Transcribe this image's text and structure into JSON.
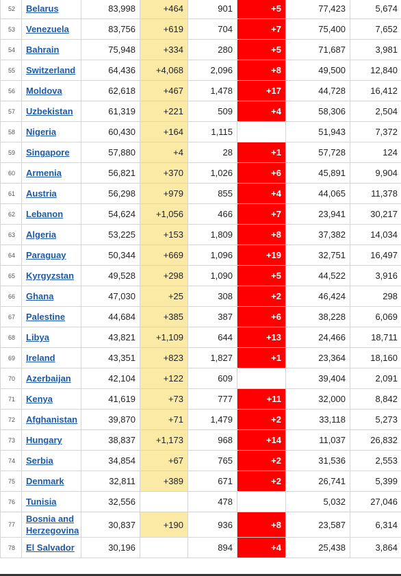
{
  "rows": [
    {
      "rank": "52",
      "country": "Belarus",
      "total_cases": "83,998",
      "new_cases": "+464",
      "total_deaths": "901",
      "new_deaths": "+5",
      "total_recovered": "77,423",
      "active_cases": "5,674"
    },
    {
      "rank": "53",
      "country": "Venezuela",
      "total_cases": "83,756",
      "new_cases": "+619",
      "total_deaths": "704",
      "new_deaths": "+7",
      "total_recovered": "75,400",
      "active_cases": "7,652"
    },
    {
      "rank": "54",
      "country": "Bahrain",
      "total_cases": "75,948",
      "new_cases": "+334",
      "total_deaths": "280",
      "new_deaths": "+5",
      "total_recovered": "71,687",
      "active_cases": "3,981"
    },
    {
      "rank": "55",
      "country": "Switzerland",
      "total_cases": "64,436",
      "new_cases": "+4,068",
      "total_deaths": "2,096",
      "new_deaths": "+8",
      "total_recovered": "49,500",
      "active_cases": "12,840"
    },
    {
      "rank": "56",
      "country": "Moldova",
      "total_cases": "62,618",
      "new_cases": "+467",
      "total_deaths": "1,478",
      "new_deaths": "+17",
      "total_recovered": "44,728",
      "active_cases": "16,412"
    },
    {
      "rank": "57",
      "country": "Uzbekistan",
      "total_cases": "61,319",
      "new_cases": "+221",
      "total_deaths": "509",
      "new_deaths": "+4",
      "total_recovered": "58,306",
      "active_cases": "2,504"
    },
    {
      "rank": "58",
      "country": "Nigeria",
      "total_cases": "60,430",
      "new_cases": "+164",
      "total_deaths": "1,115",
      "new_deaths": "",
      "total_recovered": "51,943",
      "active_cases": "7,372"
    },
    {
      "rank": "59",
      "country": "Singapore",
      "total_cases": "57,880",
      "new_cases": "+4",
      "total_deaths": "28",
      "new_deaths": "+1",
      "total_recovered": "57,728",
      "active_cases": "124"
    },
    {
      "rank": "60",
      "country": "Armenia",
      "total_cases": "56,821",
      "new_cases": "+370",
      "total_deaths": "1,026",
      "new_deaths": "+6",
      "total_recovered": "45,891",
      "active_cases": "9,904"
    },
    {
      "rank": "61",
      "country": "Austria",
      "total_cases": "56,298",
      "new_cases": "+979",
      "total_deaths": "855",
      "new_deaths": "+4",
      "total_recovered": "44,065",
      "active_cases": "11,378"
    },
    {
      "rank": "62",
      "country": "Lebanon",
      "total_cases": "54,624",
      "new_cases": "+1,056",
      "total_deaths": "466",
      "new_deaths": "+7",
      "total_recovered": "23,941",
      "active_cases": "30,217"
    },
    {
      "rank": "63",
      "country": "Algeria",
      "total_cases": "53,225",
      "new_cases": "+153",
      "total_deaths": "1,809",
      "new_deaths": "+8",
      "total_recovered": "37,382",
      "active_cases": "14,034"
    },
    {
      "rank": "64",
      "country": "Paraguay",
      "total_cases": "50,344",
      "new_cases": "+669",
      "total_deaths": "1,096",
      "new_deaths": "+19",
      "total_recovered": "32,751",
      "active_cases": "16,497"
    },
    {
      "rank": "65",
      "country": "Kyrgyzstan",
      "total_cases": "49,528",
      "new_cases": "+298",
      "total_deaths": "1,090",
      "new_deaths": "+5",
      "total_recovered": "44,522",
      "active_cases": "3,916"
    },
    {
      "rank": "66",
      "country": "Ghana",
      "total_cases": "47,030",
      "new_cases": "+25",
      "total_deaths": "308",
      "new_deaths": "+2",
      "total_recovered": "46,424",
      "active_cases": "298"
    },
    {
      "rank": "67",
      "country": "Palestine",
      "total_cases": "44,684",
      "new_cases": "+385",
      "total_deaths": "387",
      "new_deaths": "+6",
      "total_recovered": "38,228",
      "active_cases": "6,069"
    },
    {
      "rank": "68",
      "country": "Libya",
      "total_cases": "43,821",
      "new_cases": "+1,109",
      "total_deaths": "644",
      "new_deaths": "+13",
      "total_recovered": "24,466",
      "active_cases": "18,711"
    },
    {
      "rank": "69",
      "country": "Ireland",
      "total_cases": "43,351",
      "new_cases": "+823",
      "total_deaths": "1,827",
      "new_deaths": "+1",
      "total_recovered": "23,364",
      "active_cases": "18,160"
    },
    {
      "rank": "70",
      "country": "Azerbaijan",
      "total_cases": "42,104",
      "new_cases": "+122",
      "total_deaths": "609",
      "new_deaths": "",
      "total_recovered": "39,404",
      "active_cases": "2,091"
    },
    {
      "rank": "71",
      "country": "Kenya",
      "total_cases": "41,619",
      "new_cases": "+73",
      "total_deaths": "777",
      "new_deaths": "+11",
      "total_recovered": "32,000",
      "active_cases": "8,842"
    },
    {
      "rank": "72",
      "country": "Afghanistan",
      "total_cases": "39,870",
      "new_cases": "+71",
      "total_deaths": "1,479",
      "new_deaths": "+2",
      "total_recovered": "33,118",
      "active_cases": "5,273"
    },
    {
      "rank": "73",
      "country": "Hungary",
      "total_cases": "38,837",
      "new_cases": "+1,173",
      "total_deaths": "968",
      "new_deaths": "+14",
      "total_recovered": "11,037",
      "active_cases": "26,832"
    },
    {
      "rank": "74",
      "country": "Serbia",
      "total_cases": "34,854",
      "new_cases": "+67",
      "total_deaths": "765",
      "new_deaths": "+2",
      "total_recovered": "31,536",
      "active_cases": "2,553"
    },
    {
      "rank": "75",
      "country": "Denmark",
      "total_cases": "32,811",
      "new_cases": "+389",
      "total_deaths": "671",
      "new_deaths": "+2",
      "total_recovered": "26,741",
      "active_cases": "5,399"
    },
    {
      "rank": "76",
      "country": "Tunisia",
      "total_cases": "32,556",
      "new_cases": "",
      "total_deaths": "478",
      "new_deaths": "",
      "total_recovered": "5,032",
      "active_cases": "27,046"
    },
    {
      "rank": "77",
      "country": "Bosnia and Herzegovina",
      "total_cases": "30,837",
      "new_cases": "+190",
      "total_deaths": "936",
      "new_deaths": "+8",
      "total_recovered": "23,587",
      "active_cases": "6,314"
    },
    {
      "rank": "78",
      "country": "El Salvador",
      "total_cases": "30,196",
      "new_cases": "",
      "total_deaths": "894",
      "new_deaths": "+4",
      "total_recovered": "25,438",
      "active_cases": "3,864"
    }
  ],
  "colors": {
    "new_cases_bg": "#fbe9a6",
    "new_deaths_bg": "#ff0000",
    "link": "#1f5aa6"
  }
}
